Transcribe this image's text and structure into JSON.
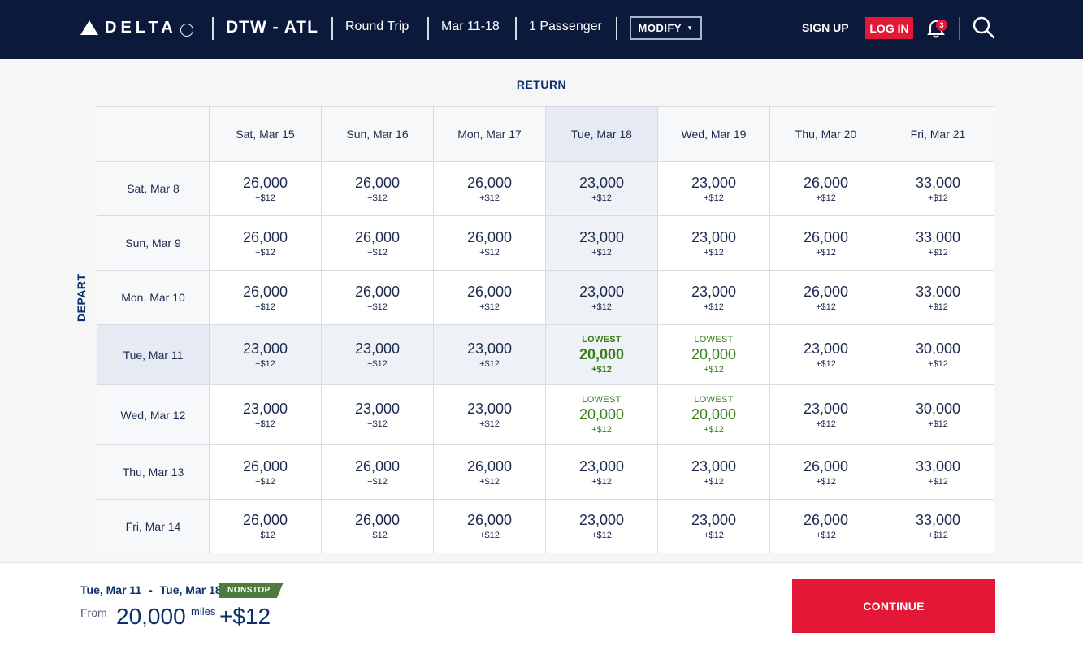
{
  "header": {
    "logo_text": "DELTA",
    "route": "DTW - ATL",
    "trip_type": "Round Trip",
    "dates": "Mar 11-18",
    "passengers": "1 Passenger",
    "modify_label": "MODIFY",
    "signup_label": "SIGN UP",
    "login_label": "LOG IN",
    "notification_count": "3"
  },
  "grid": {
    "return_label": "RETURN",
    "depart_label": "DEPART",
    "return_dates": [
      "Sat, Mar 15",
      "Sun, Mar 16",
      "Mon, Mar 17",
      "Tue, Mar 18",
      "Wed, Mar 19",
      "Thu, Mar 20",
      "Fri, Mar 21"
    ],
    "lowest_label": "LOWEST",
    "rows": [
      {
        "depart": "Sat, Mar 8",
        "cells": [
          {
            "miles": "26,000",
            "fee": "+$12"
          },
          {
            "miles": "26,000",
            "fee": "+$12"
          },
          {
            "miles": "26,000",
            "fee": "+$12"
          },
          {
            "miles": "23,000",
            "fee": "+$12"
          },
          {
            "miles": "23,000",
            "fee": "+$12"
          },
          {
            "miles": "26,000",
            "fee": "+$12"
          },
          {
            "miles": "33,000",
            "fee": "+$12"
          }
        ]
      },
      {
        "depart": "Sun, Mar 9",
        "cells": [
          {
            "miles": "26,000",
            "fee": "+$12"
          },
          {
            "miles": "26,000",
            "fee": "+$12"
          },
          {
            "miles": "26,000",
            "fee": "+$12"
          },
          {
            "miles": "23,000",
            "fee": "+$12"
          },
          {
            "miles": "23,000",
            "fee": "+$12"
          },
          {
            "miles": "26,000",
            "fee": "+$12"
          },
          {
            "miles": "33,000",
            "fee": "+$12"
          }
        ]
      },
      {
        "depart": "Mon, Mar 10",
        "cells": [
          {
            "miles": "26,000",
            "fee": "+$12"
          },
          {
            "miles": "26,000",
            "fee": "+$12"
          },
          {
            "miles": "26,000",
            "fee": "+$12"
          },
          {
            "miles": "23,000",
            "fee": "+$12"
          },
          {
            "miles": "23,000",
            "fee": "+$12"
          },
          {
            "miles": "26,000",
            "fee": "+$12"
          },
          {
            "miles": "33,000",
            "fee": "+$12"
          }
        ]
      },
      {
        "depart": "Tue, Mar 11",
        "cells": [
          {
            "miles": "23,000",
            "fee": "+$12"
          },
          {
            "miles": "23,000",
            "fee": "+$12"
          },
          {
            "miles": "23,000",
            "fee": "+$12"
          },
          {
            "miles": "20,000",
            "fee": "+$12",
            "lowest": true
          },
          {
            "miles": "20,000",
            "fee": "+$12",
            "lowest": true
          },
          {
            "miles": "23,000",
            "fee": "+$12"
          },
          {
            "miles": "30,000",
            "fee": "+$12"
          }
        ]
      },
      {
        "depart": "Wed, Mar 12",
        "cells": [
          {
            "miles": "23,000",
            "fee": "+$12"
          },
          {
            "miles": "23,000",
            "fee": "+$12"
          },
          {
            "miles": "23,000",
            "fee": "+$12"
          },
          {
            "miles": "20,000",
            "fee": "+$12",
            "lowest": true
          },
          {
            "miles": "20,000",
            "fee": "+$12",
            "lowest": true
          },
          {
            "miles": "23,000",
            "fee": "+$12"
          },
          {
            "miles": "30,000",
            "fee": "+$12"
          }
        ]
      },
      {
        "depart": "Thu, Mar 13",
        "cells": [
          {
            "miles": "26,000",
            "fee": "+$12"
          },
          {
            "miles": "26,000",
            "fee": "+$12"
          },
          {
            "miles": "26,000",
            "fee": "+$12"
          },
          {
            "miles": "23,000",
            "fee": "+$12"
          },
          {
            "miles": "23,000",
            "fee": "+$12"
          },
          {
            "miles": "26,000",
            "fee": "+$12"
          },
          {
            "miles": "33,000",
            "fee": "+$12"
          }
        ]
      },
      {
        "depart": "Fri, Mar 14",
        "cells": [
          {
            "miles": "26,000",
            "fee": "+$12"
          },
          {
            "miles": "26,000",
            "fee": "+$12"
          },
          {
            "miles": "26,000",
            "fee": "+$12"
          },
          {
            "miles": "23,000",
            "fee": "+$12"
          },
          {
            "miles": "23,000",
            "fee": "+$12"
          },
          {
            "miles": "26,000",
            "fee": "+$12"
          },
          {
            "miles": "33,000",
            "fee": "+$12"
          }
        ]
      }
    ]
  },
  "footer": {
    "depart_date": "Tue, Mar 11",
    "separator": "-",
    "return_date": "Tue, Mar 18",
    "nonstop_label": "NONSTOP",
    "from_label": "From",
    "miles": "20,000",
    "miles_unit": "miles",
    "fee": "+$12",
    "continue_label": "CONTINUE"
  },
  "colors": {
    "header_bg": "#0b1a3a",
    "accent_red": "#e31837",
    "lowest_green": "#3a7d19",
    "nonstop_green": "#4f7a3d",
    "navy_text": "#0b2f6b"
  }
}
